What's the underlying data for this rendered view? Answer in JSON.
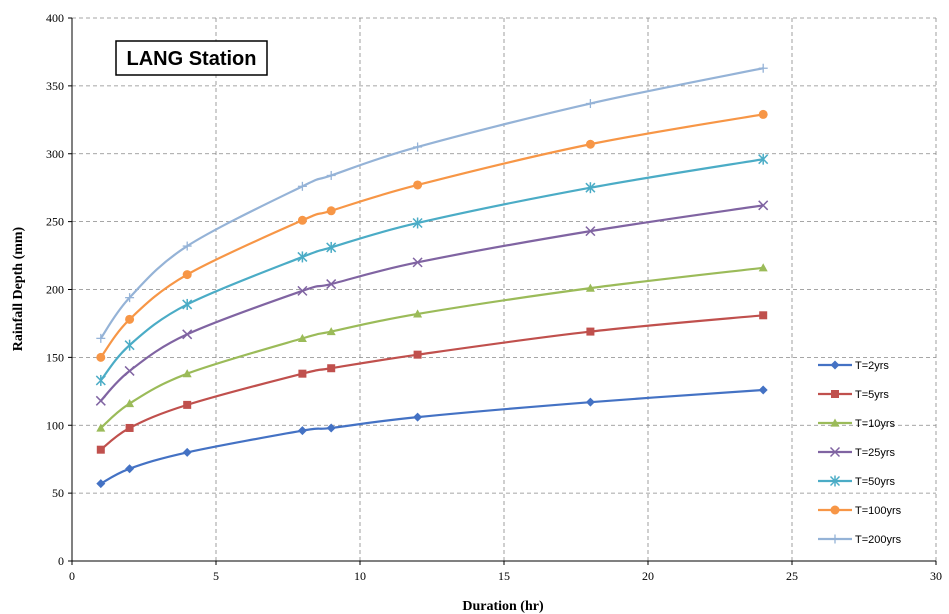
{
  "chart_data": {
    "type": "line",
    "title": "LANG Station",
    "xlabel": "Duration (hr)",
    "ylabel": "Rainfall Depth (mm)",
    "xlim": [
      0,
      30
    ],
    "ylim": [
      0,
      400
    ],
    "xticks": [
      0,
      5,
      10,
      15,
      20,
      25,
      30
    ],
    "yticks": [
      0,
      50,
      100,
      150,
      200,
      250,
      300,
      350,
      400
    ],
    "grid": true,
    "legend_position": "right",
    "x": [
      1,
      2,
      4,
      8,
      9,
      12,
      18,
      24
    ],
    "series": [
      {
        "name": "T=2yrs",
        "color": "#4472C4",
        "marker": "diamond",
        "values": [
          57,
          68,
          80,
          96,
          98,
          106,
          117,
          126
        ]
      },
      {
        "name": "T=5yrs",
        "color": "#C0504D",
        "marker": "square",
        "values": [
          82,
          98,
          115,
          138,
          142,
          152,
          169,
          181
        ]
      },
      {
        "name": "T=10yrs",
        "color": "#9BBB59",
        "marker": "triangle",
        "values": [
          98,
          116,
          138,
          164,
          169,
          182,
          201,
          216
        ]
      },
      {
        "name": "T=25yrs",
        "color": "#8064A2",
        "marker": "x",
        "values": [
          118,
          140,
          167,
          199,
          204,
          220,
          243,
          262
        ]
      },
      {
        "name": "T=50yrs",
        "color": "#4BACC6",
        "marker": "star",
        "values": [
          133,
          159,
          189,
          224,
          231,
          249,
          275,
          296
        ]
      },
      {
        "name": "T=100yrs",
        "color": "#F79646",
        "marker": "circle",
        "values": [
          150,
          178,
          211,
          251,
          258,
          277,
          307,
          329
        ]
      },
      {
        "name": "T=200yrs",
        "color": "#95B3D7",
        "marker": "plus",
        "values": [
          164,
          194,
          232,
          276,
          284,
          305,
          337,
          363
        ]
      }
    ]
  }
}
